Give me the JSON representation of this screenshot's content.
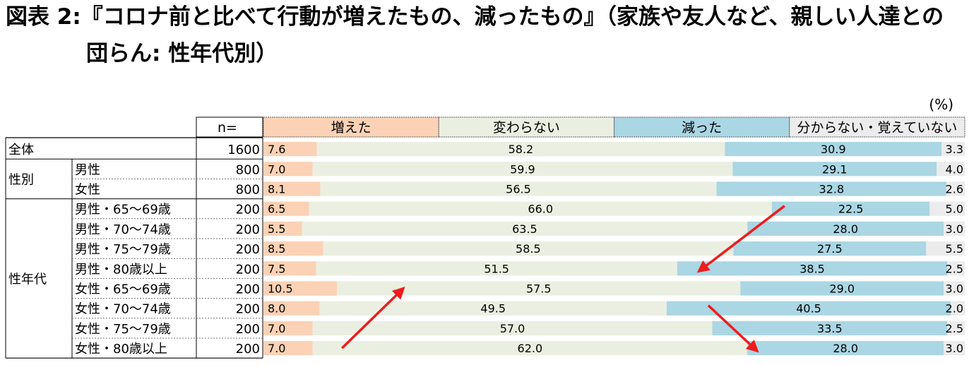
{
  "title": {
    "line1": "図表 2:『コロナ前と比べて行動が増えたもの、減ったもの』（家族や友人など、親しい人達との",
    "line2": "団らん: 性年代別）"
  },
  "unit_label": "(%)",
  "n_header": "n=",
  "colors": {
    "increased": "#fbd2b5",
    "unchanged": "#ebefe1",
    "decreased": "#abd6e4",
    "unknown": "#ececec",
    "arrow": "#ee1c1c"
  },
  "chart_data": {
    "type": "bar",
    "stacked": true,
    "orientation": "horizontal",
    "unit": "%",
    "series_names": [
      "増えた",
      "変わらない",
      "減った",
      "分からない・覚えていない"
    ],
    "groups": [
      {
        "name": "全体",
        "row_labels": [
          ""
        ]
      },
      {
        "name": "性別",
        "row_labels": [
          "男性",
          "女性"
        ]
      },
      {
        "name": "性年代",
        "row_labels": [
          "男性・65〜69歳",
          "男性・70〜74歳",
          "男性・75〜79歳",
          "男性・80歳以上",
          "女性・65〜69歳",
          "女性・70〜74歳",
          "女性・75〜79歳",
          "女性・80歳以上"
        ]
      }
    ],
    "n": [
      "1600",
      "800",
      "800",
      "200",
      "200",
      "200",
      "200",
      "200",
      "200",
      "200",
      "200"
    ],
    "values": [
      [
        7.6,
        58.2,
        30.9,
        3.3
      ],
      [
        7.0,
        59.9,
        29.1,
        4.0
      ],
      [
        8.1,
        56.5,
        32.8,
        2.6
      ],
      [
        6.5,
        66.0,
        22.5,
        5.0
      ],
      [
        5.5,
        63.5,
        28.0,
        3.0
      ],
      [
        8.5,
        58.5,
        27.5,
        5.5
      ],
      [
        7.5,
        51.5,
        38.5,
        2.5
      ],
      [
        10.5,
        57.5,
        29.0,
        3.0
      ],
      [
        8.0,
        49.5,
        40.5,
        2.0
      ],
      [
        7.0,
        57.0,
        33.5,
        2.5
      ],
      [
        7.0,
        62.0,
        28.0,
        3.0
      ]
    ],
    "labels": [
      [
        "7.6",
        "58.2",
        "30.9",
        "3.3"
      ],
      [
        "7.0",
        "59.9",
        "29.1",
        "4.0"
      ],
      [
        "8.1",
        "56.5",
        "32.8",
        "2.6"
      ],
      [
        "6.5",
        "66.0",
        "22.5",
        "5.0"
      ],
      [
        "5.5",
        "63.5",
        "28.0",
        "3.0"
      ],
      [
        "8.5",
        "58.5",
        "27.5",
        "5.5"
      ],
      [
        "7.5",
        "51.5",
        "38.5",
        "2.5"
      ],
      [
        "10.5",
        "57.5",
        "29.0",
        "3.0"
      ],
      [
        "8.0",
        "49.5",
        "40.5",
        "2.0"
      ],
      [
        "7.0",
        "57.0",
        "33.5",
        "2.5"
      ],
      [
        "7.0",
        "62.0",
        "28.0",
        "3.0"
      ]
    ],
    "annotations": [
      {
        "type": "arrow",
        "from_row": 10,
        "to_row": 7,
        "series": 0,
        "meaning": "increase"
      },
      {
        "type": "arrow",
        "from_row": 3,
        "to_row": 6,
        "series": 2,
        "meaning": "increase"
      },
      {
        "type": "arrow",
        "from_row": 8,
        "to_row": 10,
        "series": 2,
        "meaning": "decrease"
      }
    ]
  }
}
